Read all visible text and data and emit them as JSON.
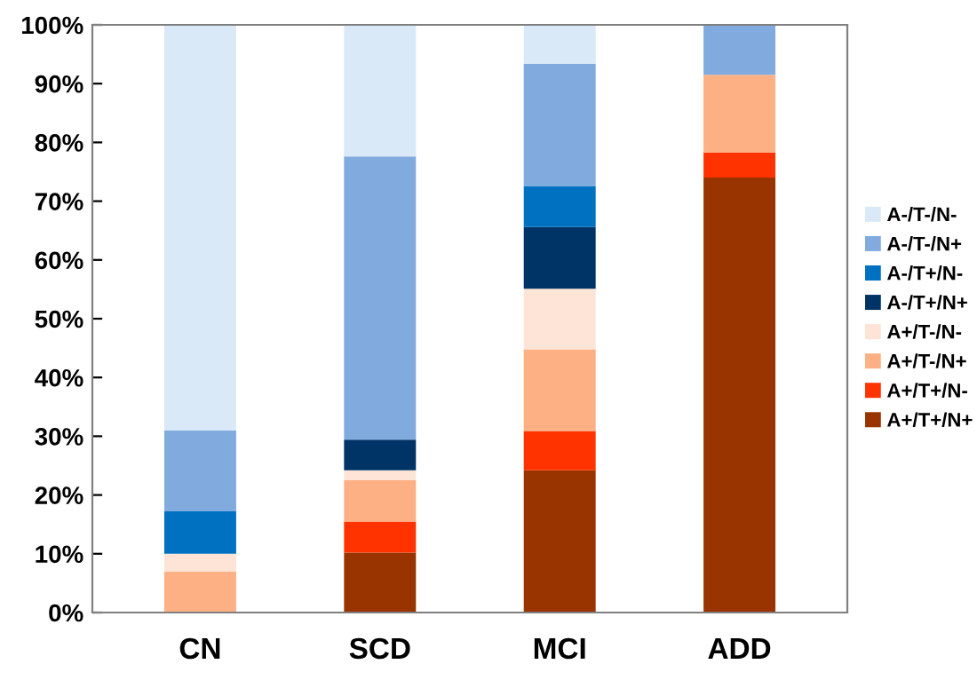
{
  "chart_data": {
    "type": "bar",
    "stacked": true,
    "categories": [
      "CN",
      "SCD",
      "MCI",
      "ADD"
    ],
    "series": [
      {
        "name": "A+/T+/N+",
        "color": "#993300",
        "values": [
          0,
          10.2,
          24.2,
          74
        ]
      },
      {
        "name": "A+/T+/N-",
        "color": "#ff3300",
        "values": [
          0,
          5.3,
          6.7,
          4.3
        ]
      },
      {
        "name": "A+/T-/N+",
        "color": "#fdb083",
        "values": [
          7,
          7,
          13.9,
          13.2
        ]
      },
      {
        "name": "A+/T-/N-",
        "color": "#fde4d6",
        "values": [
          3,
          1.7,
          10.3,
          0
        ]
      },
      {
        "name": "A-/T+/N+",
        "color": "#003366",
        "values": [
          0,
          5.2,
          10.5,
          0
        ]
      },
      {
        "name": "A-/T+/N-",
        "color": "#0070c0",
        "values": [
          7.3,
          0,
          7,
          0
        ]
      },
      {
        "name": "A-/T-/N+",
        "color": "#81aadf",
        "values": [
          13.7,
          48.2,
          20.8,
          8.5
        ]
      },
      {
        "name": "A-/T-/N-",
        "color": "#dae9f7",
        "values": [
          69,
          22.4,
          6.6,
          0
        ]
      }
    ],
    "ylim": [
      0,
      100
    ],
    "yticks": [
      {
        "value": 0,
        "label": "0%"
      },
      {
        "value": 10,
        "label": "10%"
      },
      {
        "value": 20,
        "label": "20%"
      },
      {
        "value": 30,
        "label": "30%"
      },
      {
        "value": 40,
        "label": "40%"
      },
      {
        "value": 50,
        "label": "50%"
      },
      {
        "value": 60,
        "label": "60%"
      },
      {
        "value": 70,
        "label": "70%"
      },
      {
        "value": 80,
        "label": "80%"
      },
      {
        "value": 90,
        "label": "90%"
      },
      {
        "value": 100,
        "label": "100%"
      }
    ],
    "grid": false,
    "legend": "right"
  }
}
